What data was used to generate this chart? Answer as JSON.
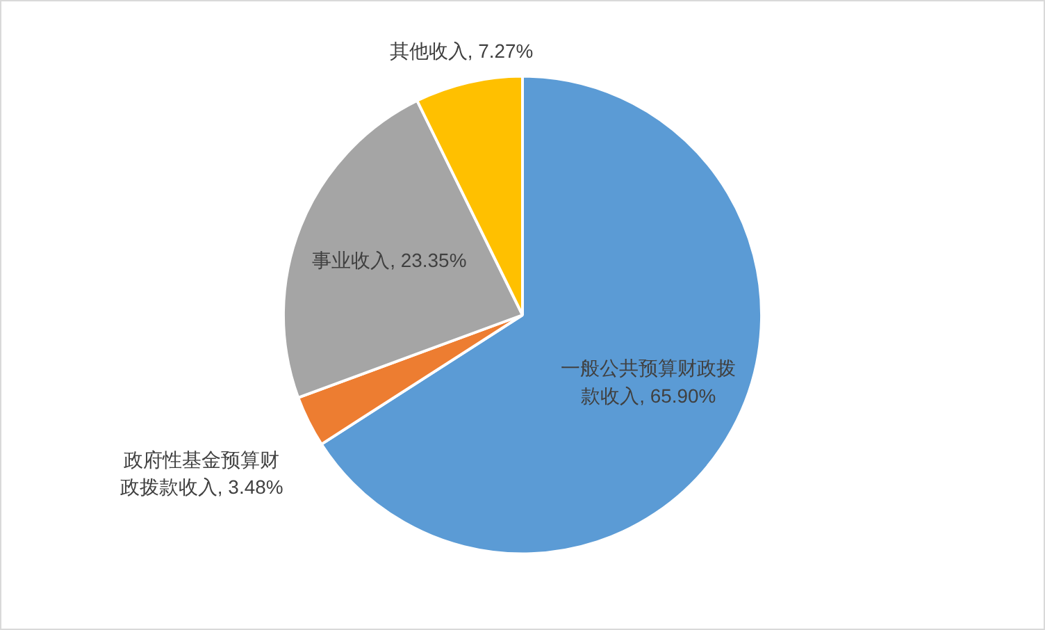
{
  "chart_data": {
    "type": "pie",
    "categories": [
      "一般公共预算财政拨款收入",
      "政府性基金预算财政拨款收入",
      "事业收入",
      "其他收入"
    ],
    "values": [
      65.9,
      3.48,
      23.35,
      7.27
    ],
    "colors": [
      "#5b9bd5",
      "#ed7d31",
      "#a5a5a5",
      "#ffc000"
    ],
    "value_labels": [
      "65.90%",
      "3.48%",
      "23.35%",
      "7.27%"
    ],
    "legend": false
  }
}
